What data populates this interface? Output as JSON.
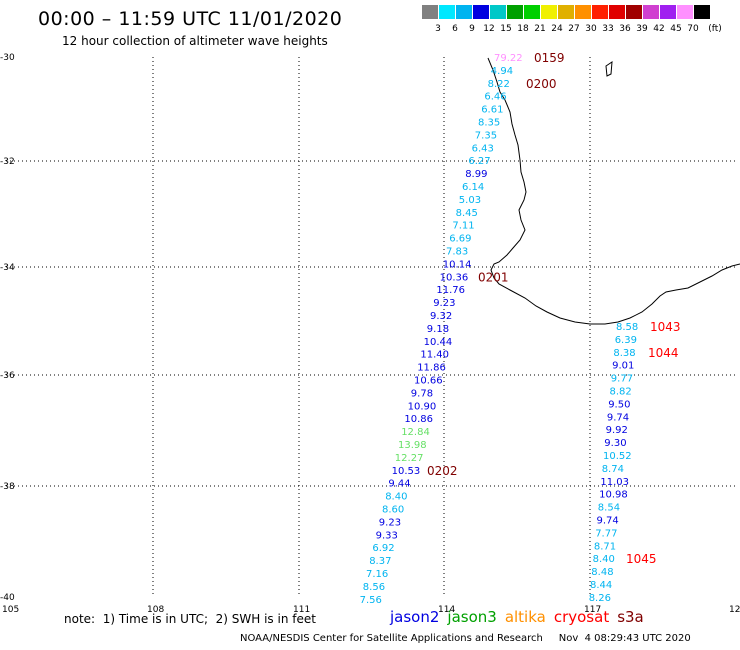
{
  "header": {
    "title": "00:00 – 11:59 UTC 11/01/2020",
    "subtitle": "12 hour collection of altimeter wave heights"
  },
  "legend": {
    "unit": "(ft)",
    "swatches": [
      {
        "label": "3",
        "color": "#808080"
      },
      {
        "label": "6",
        "color": "#00e8ff"
      },
      {
        "label": "9",
        "color": "#00b4f0"
      },
      {
        "label": "12",
        "color": "#0000e0"
      },
      {
        "label": "15",
        "color": "#00c8c8"
      },
      {
        "label": "18",
        "color": "#00a000"
      },
      {
        "label": "21",
        "color": "#00d000"
      },
      {
        "label": "24",
        "color": "#f0f000"
      },
      {
        "label": "27",
        "color": "#e0b000"
      },
      {
        "label": "30",
        "color": "#ff9000"
      },
      {
        "label": "33",
        "color": "#ff2000"
      },
      {
        "label": "36",
        "color": "#e00000"
      },
      {
        "label": "39",
        "color": "#a00000"
      },
      {
        "label": "42",
        "color": "#d040d0"
      },
      {
        "label": "45",
        "color": "#a020f0"
      },
      {
        "label": "70",
        "color": "#ff90ff"
      },
      {
        "label": "",
        "color": "#000000"
      }
    ]
  },
  "axes": {
    "lon_ticks": [
      "105",
      "108",
      "111",
      "114",
      "117",
      "120"
    ],
    "lat_ticks": [
      "-30",
      "-32",
      "-34",
      "-36",
      "-38",
      "-40"
    ]
  },
  "pass_west": {
    "labels": [
      "79.22",
      "4.94",
      "8.22",
      "6.46",
      "6.61",
      "8.35",
      "7.35",
      "6.43",
      "6.27",
      "8.99",
      "6.14",
      "5.03",
      "8.45",
      "7.11",
      "6.69",
      "7.83",
      "10.14",
      "10.36",
      "11.76",
      "9.23",
      "9.32",
      "9.18",
      "10.44",
      "11.40",
      "11.86",
      "10.66",
      "9.78",
      "10.90",
      "10.86",
      "12.84",
      "13.98",
      "12.27",
      "10.53",
      "9.44",
      "8.40",
      "8.60",
      "9.23",
      "9.33",
      "6.92",
      "8.37",
      "7.16",
      "8.56",
      "7.56"
    ],
    "colors": [
      "#ff90ff",
      "#00b4f0",
      "#00b4f0",
      "#00b4f0",
      "#00b4f0",
      "#00b4f0",
      "#00b4f0",
      "#00b4f0",
      "#00b4f0",
      "#0000e0",
      "#00b4f0",
      "#00b4f0",
      "#00b4f0",
      "#00b4f0",
      "#00b4f0",
      "#00b4f0",
      "#0000e0",
      "#0000e0",
      "#0000e0",
      "#0000e0",
      "#0000e0",
      "#0000e0",
      "#0000e0",
      "#0000e0",
      "#0000e0",
      "#0000e0",
      "#0000e0",
      "#0000e0",
      "#0000e0",
      "#66e066",
      "#66e066",
      "#66e066",
      "#0000e0",
      "#0000e0",
      "#00b4f0",
      "#00b4f0",
      "#0000e0",
      "#0000e0",
      "#00b4f0",
      "#00b4f0",
      "#00b4f0",
      "#00b4f0",
      "#00b4f0"
    ],
    "times": [
      {
        "label": "0159",
        "row": 0,
        "color": "#800000"
      },
      {
        "label": "0200",
        "row": 2,
        "color": "#800000"
      },
      {
        "label": "0201",
        "row": 17,
        "color": "#800000"
      },
      {
        "label": "0202",
        "row": 32,
        "color": "#800000"
      }
    ]
  },
  "pass_east": {
    "labels": [
      "8.58",
      "6.39",
      "8.38",
      "9.01",
      "9.77",
      "8.82",
      "9.50",
      "9.74",
      "9.92",
      "9.30",
      "10.52",
      "8.74",
      "11.03",
      "10.98",
      "8.54",
      "9.74",
      "7.77",
      "8.71",
      "8.40",
      "8.48",
      "8.44",
      "8.26"
    ],
    "colors": [
      "#00b4f0",
      "#00b4f0",
      "#00b4f0",
      "#0000e0",
      "#00b4f0",
      "#00b4f0",
      "#0000e0",
      "#0000e0",
      "#0000e0",
      "#0000e0",
      "#00b4f0",
      "#00b4f0",
      "#0000e0",
      "#0000e0",
      "#00b4f0",
      "#0000e0",
      "#00b4f0",
      "#00b4f0",
      "#00b4f0",
      "#00b4f0",
      "#00b4f0",
      "#00b4f0"
    ],
    "times": [
      {
        "label": "1043",
        "row": 0,
        "color": "#ff0000"
      },
      {
        "label": "1044",
        "row": 2,
        "color": "#ff0000"
      },
      {
        "label": "1045",
        "row": 18,
        "color": "#ff0000"
      }
    ]
  },
  "footer": {
    "note": "note:  1) Time is in UTC;  2) SWH is in feet",
    "satellites": [
      {
        "name": "jason2",
        "color": "#0000e0"
      },
      {
        "name": "jason3",
        "color": "#00a000"
      },
      {
        "name": "altika",
        "color": "#ff9000"
      },
      {
        "name": "cryosat",
        "color": "#ff0000"
      },
      {
        "name": "s3a",
        "color": "#800000"
      }
    ],
    "credit": "NOAA/NESDIS Center for Satellite Applications and Research     Nov  4 08:29:43 UTC 2020"
  }
}
